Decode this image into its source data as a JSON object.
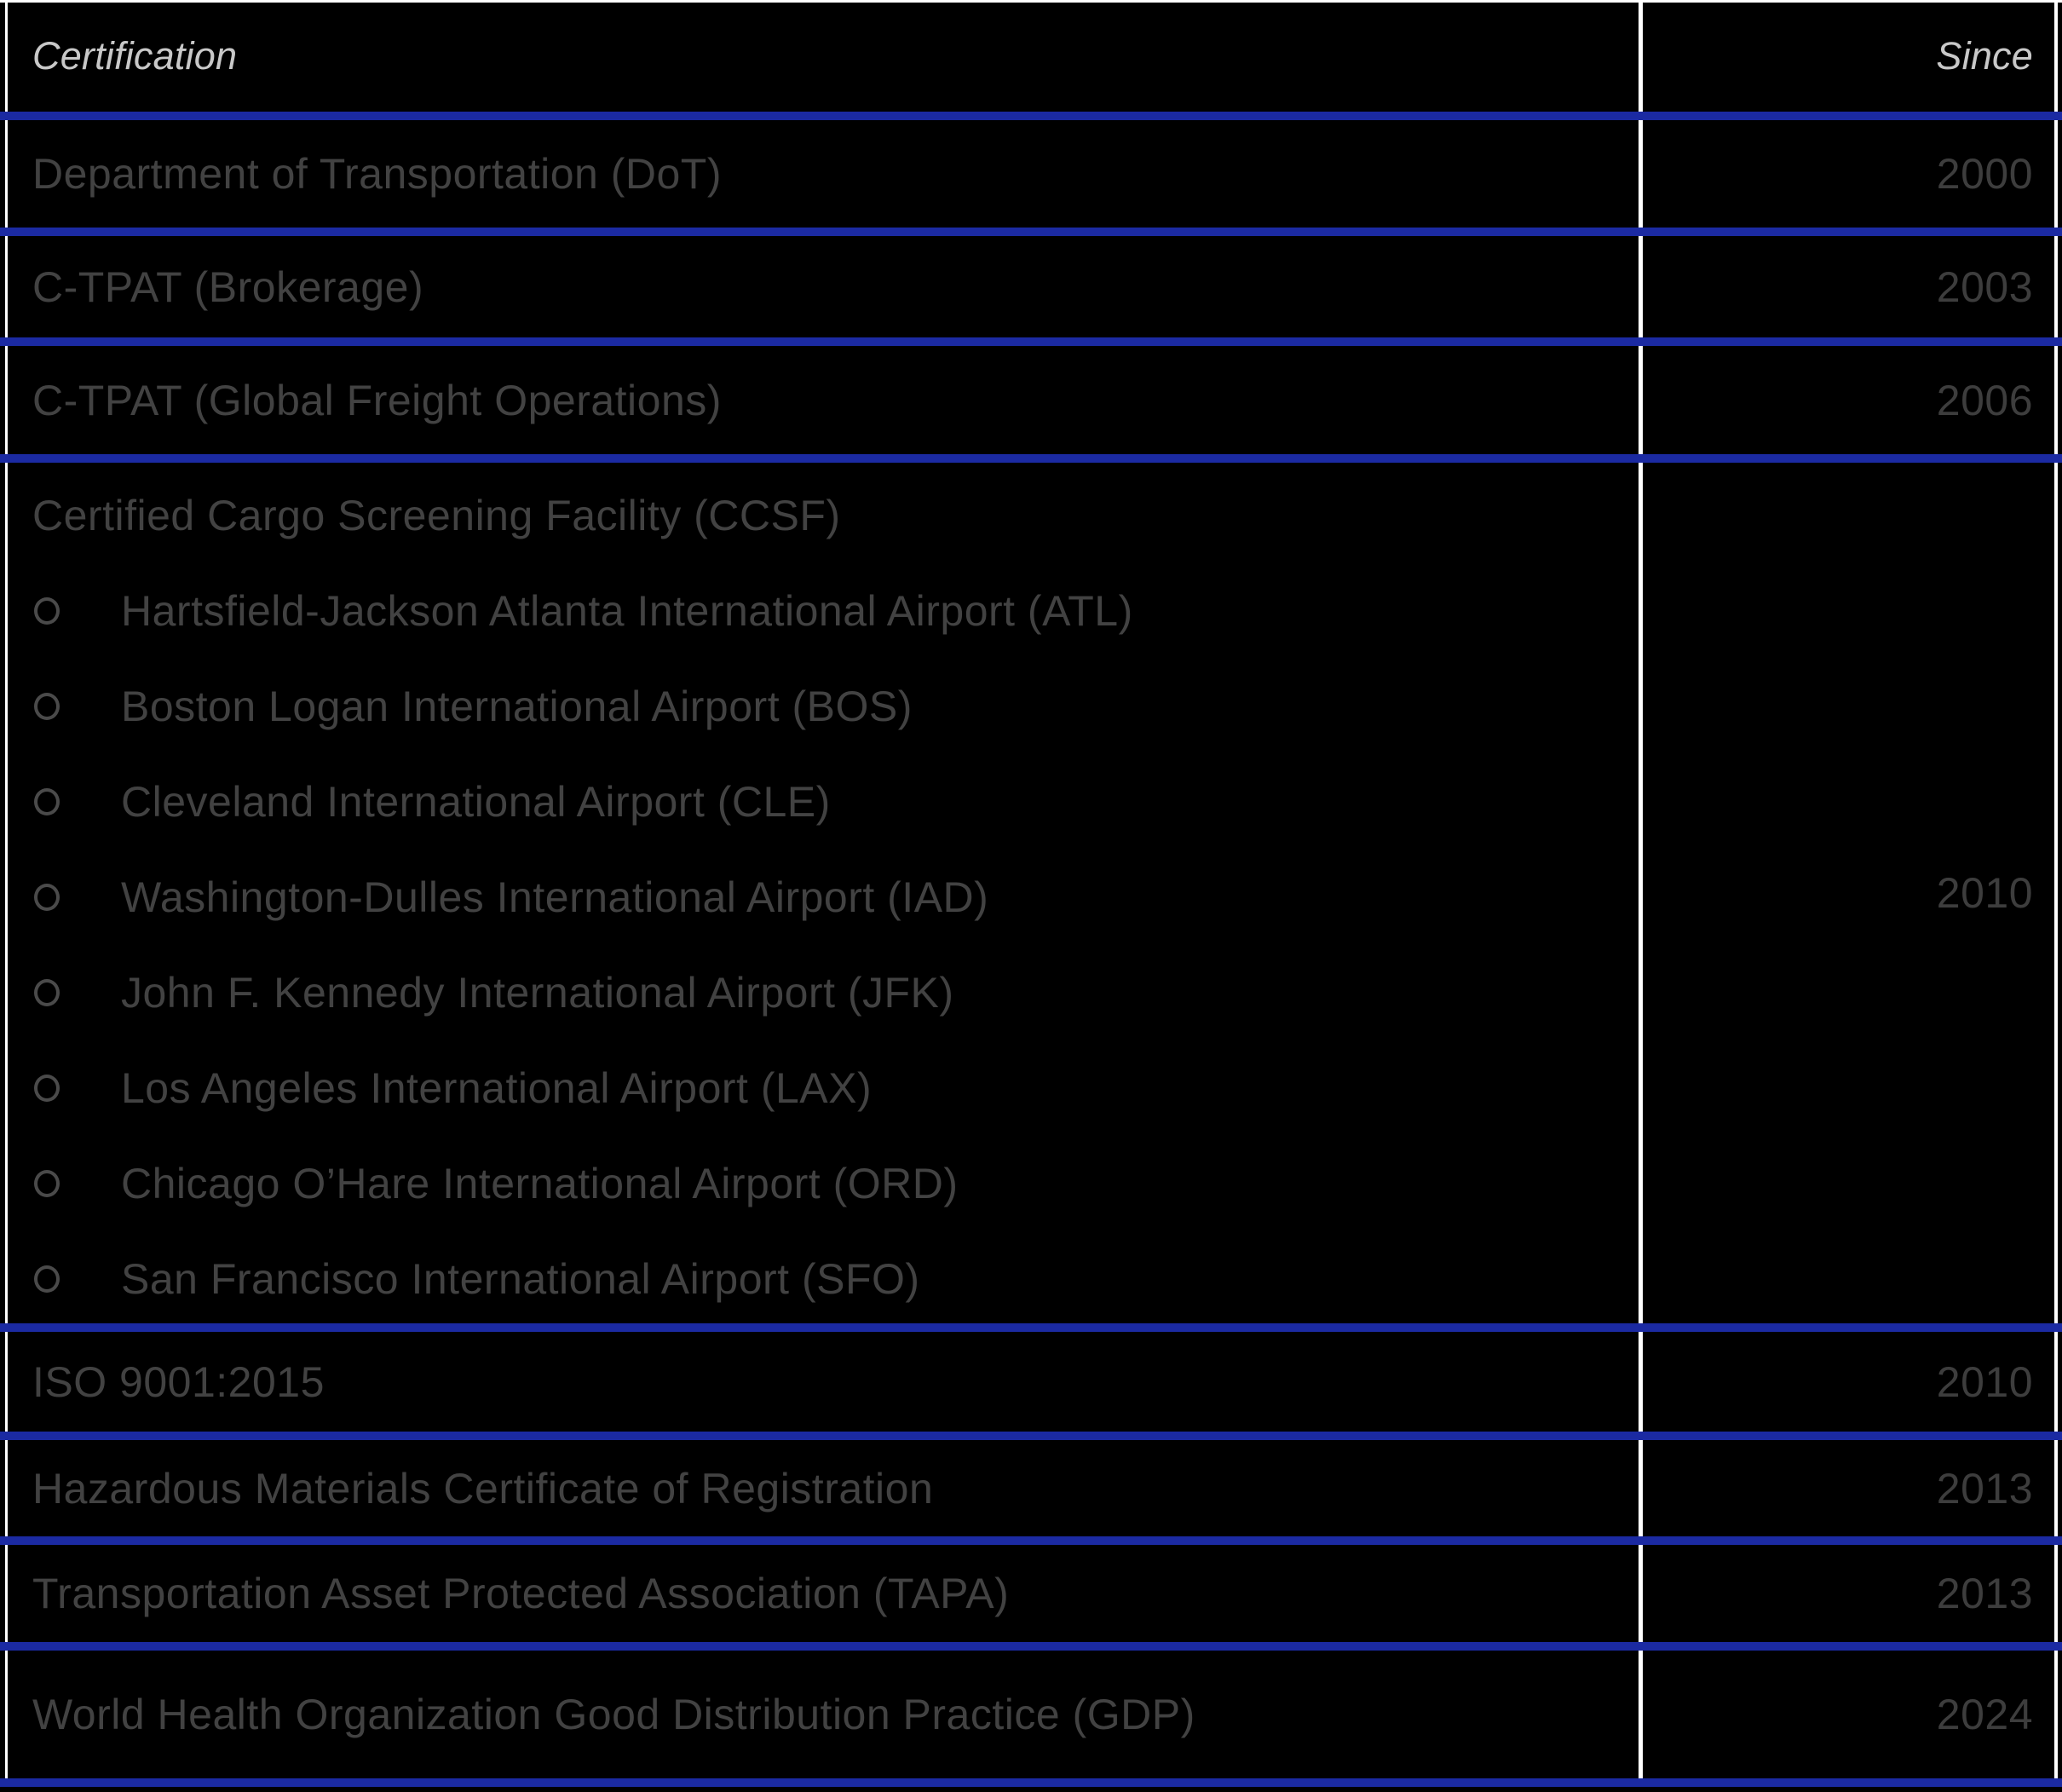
{
  "table": {
    "header": {
      "certification": "Certification",
      "since": "Since"
    },
    "rows": [
      {
        "certification": "Department of Transportation (DoT)",
        "since": "2000"
      },
      {
        "certification": "C-TPAT (Brokerage)",
        "since": "2003"
      },
      {
        "certification": "C-TPAT (Global Freight Operations)",
        "since": "2006"
      },
      {
        "certification": "Certified Cargo Screening Facility (CCSF)",
        "since": "2010",
        "sub_items": [
          "Hartsfield-Jackson Atlanta International Airport (ATL)",
          "Boston Logan International Airport (BOS)",
          "Cleveland International Airport (CLE)",
          "Washington-Dulles International Airport (IAD)",
          "John F. Kennedy International Airport (JFK)",
          "Los Angeles International Airport (LAX)",
          "Chicago O’Hare International Airport (ORD)",
          "San Francisco International Airport (SFO)"
        ]
      },
      {
        "certification": "ISO 9001:2015",
        "since": "2010"
      },
      {
        "certification": "Hazardous Materials Certificate of Registration",
        "since": "2013"
      },
      {
        "certification": "Transportation Asset Protected Association (TAPA)",
        "since": "2013"
      },
      {
        "certification": "World Health Organization Good Distribution Practice (GDP)",
        "since": "2024"
      }
    ],
    "colors": {
      "background": "#000000",
      "row_divider": "#1b2aa2",
      "column_divider": "#ffffff",
      "header_text": "#c8c8c8",
      "body_text": "#424242"
    }
  }
}
